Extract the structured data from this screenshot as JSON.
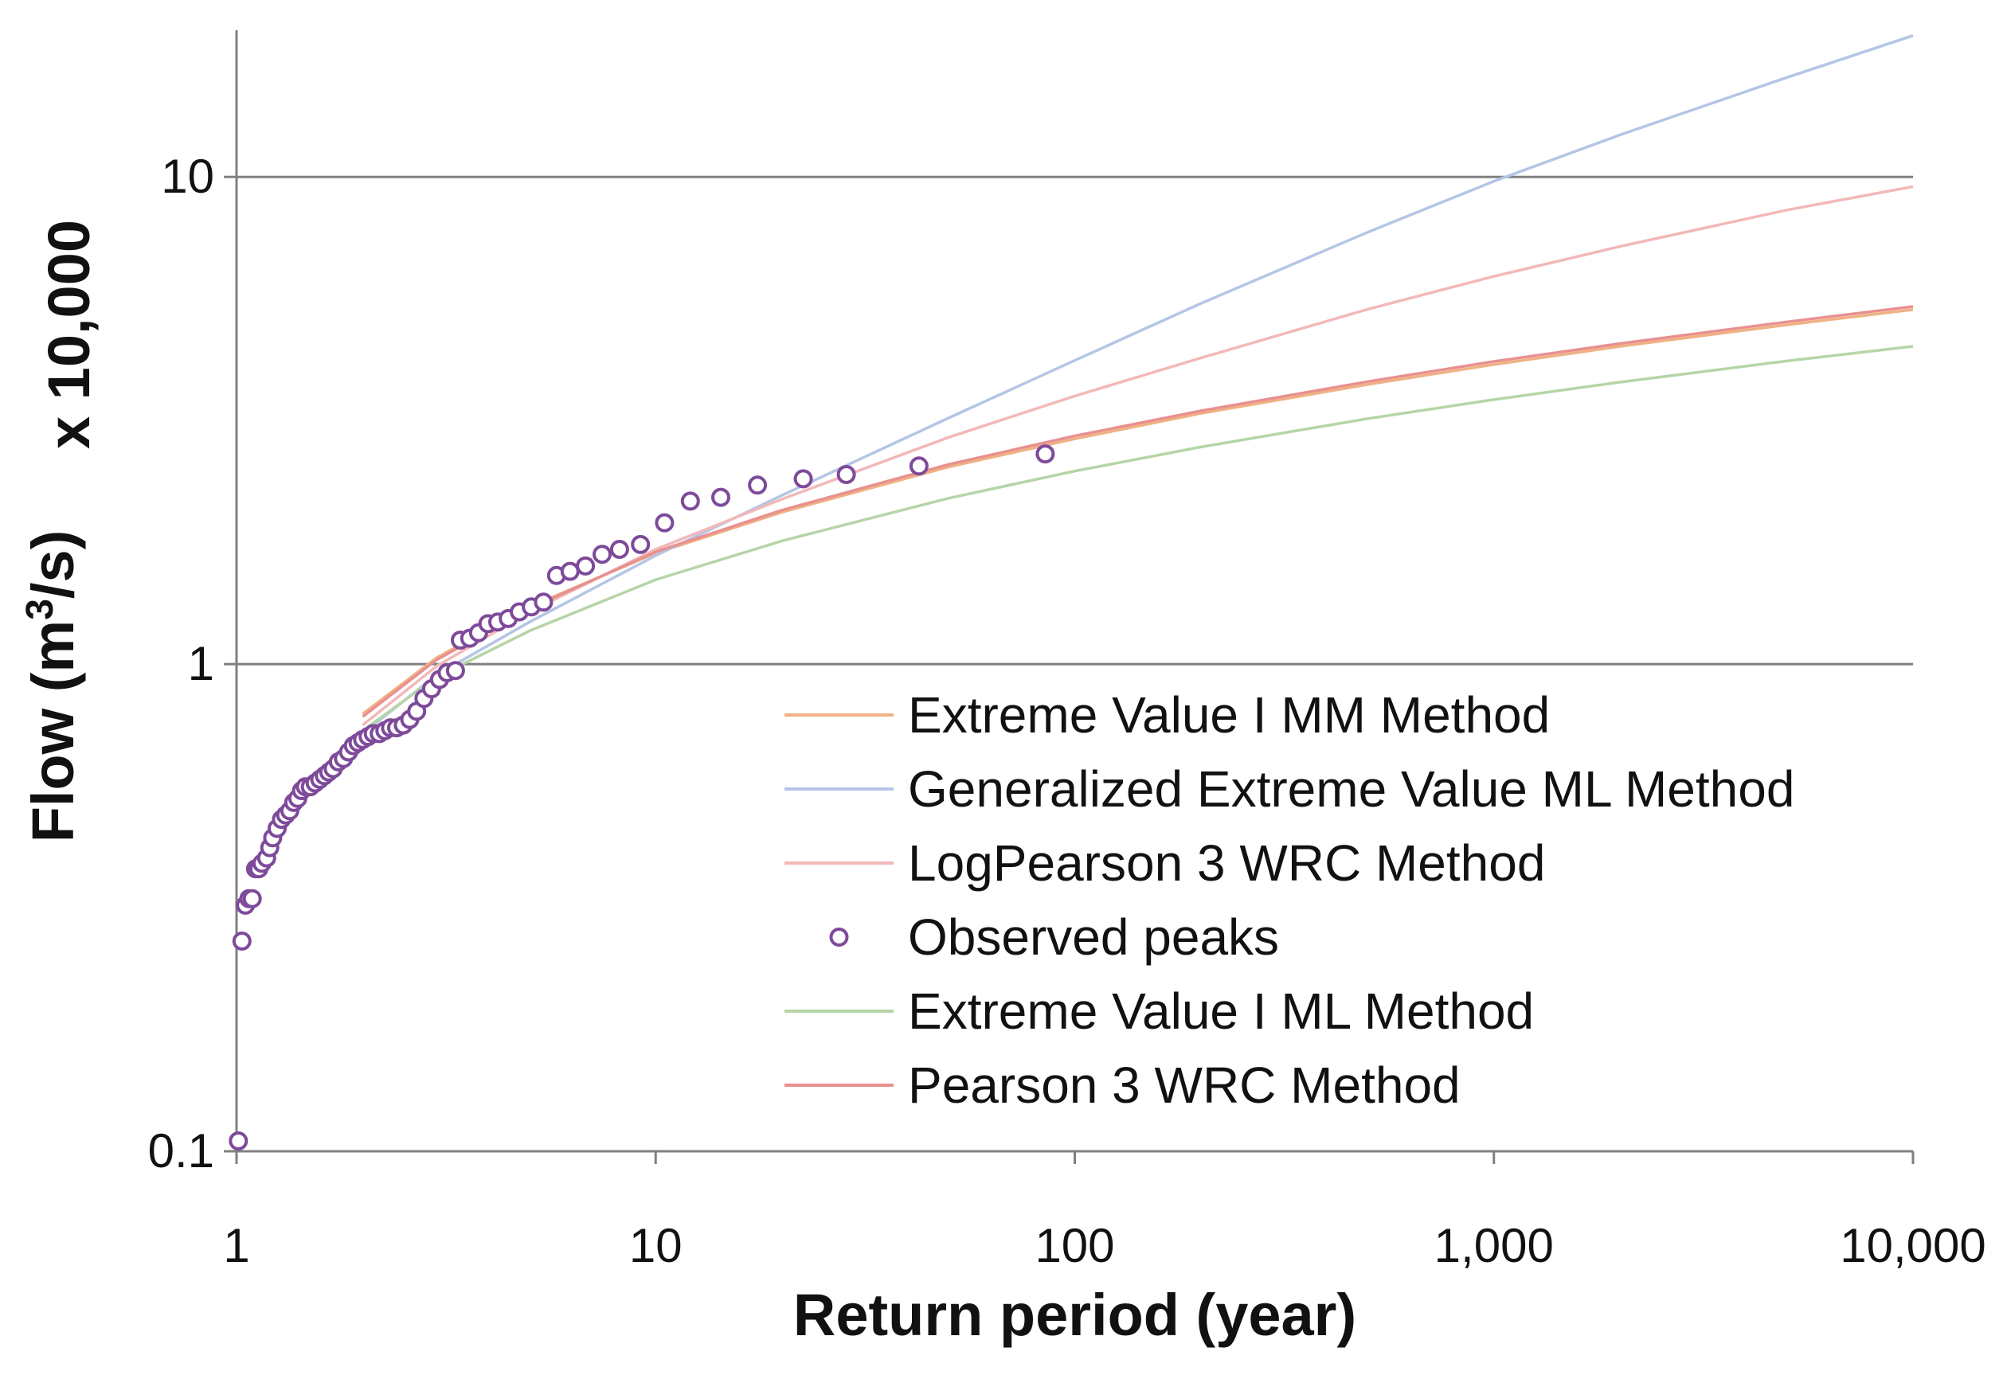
{
  "chart_data": {
    "type": "line",
    "xlabel": "Return period (year)",
    "ylabel": "Flow (m³/s)",
    "ylabel_parts": {
      "base": "Flow (m",
      "sup": "3",
      "tail": "/s)"
    },
    "y_multiplier": "x 10,000",
    "x_scale": "log",
    "y_scale": "log",
    "xlim": [
      1,
      10000
    ],
    "ylim": [
      0.1,
      20
    ],
    "x_ticks": [
      1,
      10,
      100,
      1000,
      10000
    ],
    "x_tick_labels": [
      "1",
      "10",
      "100",
      "1,000",
      "10,000"
    ],
    "y_ticks": [
      0.1,
      1,
      10
    ],
    "y_tick_labels": [
      "0.1",
      "1",
      "10"
    ],
    "gridlines_y": [
      1,
      10
    ],
    "legend_position": "bottom-right",
    "series": [
      {
        "name": "Extreme Value I MM Method",
        "kind": "line",
        "color": "#f0b183",
        "x": [
          2,
          3,
          5,
          10,
          20,
          50,
          100,
          200,
          500,
          1000,
          2000,
          5000,
          10000
        ],
        "y": [
          0.79,
          1.03,
          1.31,
          1.69,
          2.05,
          2.54,
          2.9,
          3.27,
          3.75,
          4.12,
          4.49,
          4.97,
          5.34
        ]
      },
      {
        "name": "Generalized Extreme Value ML Method",
        "kind": "line",
        "color": "#b4c5e6",
        "x": [
          2,
          3,
          5,
          10,
          20,
          50,
          100,
          200,
          500,
          1000,
          2000,
          5000,
          10000
        ],
        "y": [
          0.72,
          0.95,
          1.22,
          1.67,
          2.22,
          3.2,
          4.2,
          5.5,
          7.7,
          9.8,
          12.2,
          16.0,
          19.5
        ]
      },
      {
        "name": "LogPearson 3 WRC Method",
        "kind": "line",
        "color": "#f3b8b8",
        "x": [
          2,
          3,
          5,
          10,
          20,
          50,
          100,
          200,
          500,
          1000,
          2000,
          5000,
          10000
        ],
        "y": [
          0.75,
          0.99,
          1.28,
          1.72,
          2.18,
          2.92,
          3.55,
          4.25,
          5.35,
          6.25,
          7.2,
          8.55,
          9.55
        ]
      },
      {
        "name": "Observed peaks",
        "kind": "scatter",
        "color": "#7e4a9a",
        "x": [
          1.01,
          1.03,
          1.05,
          1.07,
          1.09,
          1.11,
          1.13,
          1.15,
          1.18,
          1.2,
          1.22,
          1.25,
          1.28,
          1.31,
          1.34,
          1.37,
          1.4,
          1.43,
          1.46,
          1.5,
          1.54,
          1.58,
          1.62,
          1.66,
          1.7,
          1.75,
          1.8,
          1.85,
          1.9,
          1.95,
          2.0,
          2.06,
          2.12,
          2.19,
          2.26,
          2.33,
          2.41,
          2.5,
          2.59,
          2.69,
          2.8,
          2.92,
          3.05,
          3.18,
          3.33,
          3.42,
          3.6,
          3.78,
          3.98,
          4.2,
          4.45,
          4.73,
          5.05,
          5.4,
          5.8,
          6.25,
          6.8,
          7.45,
          8.2,
          9.2,
          10.5,
          12.1,
          14.3,
          17.5,
          22.5,
          28.5,
          42.5,
          85.0
        ],
        "y": [
          0.105,
          0.27,
          0.32,
          0.33,
          0.33,
          0.38,
          0.38,
          0.39,
          0.4,
          0.42,
          0.44,
          0.46,
          0.48,
          0.49,
          0.5,
          0.52,
          0.53,
          0.55,
          0.56,
          0.56,
          0.57,
          0.58,
          0.59,
          0.6,
          0.61,
          0.63,
          0.64,
          0.66,
          0.68,
          0.69,
          0.7,
          0.71,
          0.72,
          0.72,
          0.73,
          0.74,
          0.74,
          0.75,
          0.77,
          0.8,
          0.85,
          0.89,
          0.93,
          0.96,
          0.97,
          1.12,
          1.13,
          1.16,
          1.21,
          1.22,
          1.24,
          1.28,
          1.31,
          1.34,
          1.52,
          1.55,
          1.59,
          1.68,
          1.72,
          1.76,
          1.95,
          2.16,
          2.2,
          2.33,
          2.4,
          2.45,
          2.55,
          2.7
        ]
      },
      {
        "name": "Extreme Value I ML Method",
        "kind": "line",
        "color": "#b5d5a6",
        "x": [
          2,
          3,
          5,
          10,
          20,
          50,
          100,
          200,
          500,
          1000,
          2000,
          5000,
          10000
        ],
        "y": [
          0.73,
          0.94,
          1.17,
          1.49,
          1.79,
          2.19,
          2.49,
          2.79,
          3.19,
          3.49,
          3.79,
          4.19,
          4.49
        ]
      },
      {
        "name": "Pearson 3 WRC Method",
        "kind": "line",
        "color": "#e89090",
        "x": [
          2,
          3,
          5,
          10,
          20,
          50,
          100,
          200,
          500,
          1000,
          2000,
          5000,
          10000
        ],
        "y": [
          0.78,
          1.02,
          1.3,
          1.7,
          2.07,
          2.57,
          2.94,
          3.31,
          3.8,
          4.18,
          4.55,
          5.04,
          5.42
        ]
      }
    ]
  }
}
